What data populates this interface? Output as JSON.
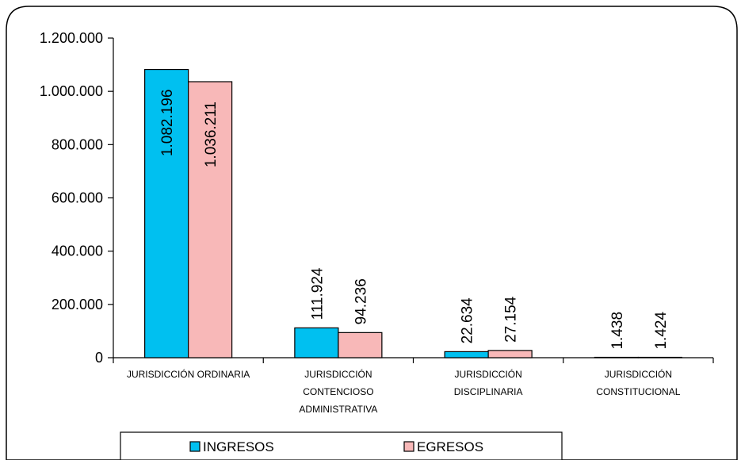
{
  "chart_data": {
    "type": "bar",
    "categories": [
      [
        "JURISDICCIÓN ORDINARIA"
      ],
      [
        "JURISDICCIÓN",
        "CONTENCIOSO",
        "ADMINISTRATIVA"
      ],
      [
        "JURISDICCIÓN",
        "DISCIPLINARIA"
      ],
      [
        "JURISDICCIÓN",
        "CONSTITUCIONAL"
      ]
    ],
    "series": [
      {
        "name": "INGRESOS",
        "color": "#00c0f0",
        "values": [
          1082196,
          111924,
          22634,
          1438
        ],
        "labels": [
          "1.082.196",
          "111.924",
          "22.634",
          "1.438"
        ]
      },
      {
        "name": "EGRESOS",
        "color": "#f8b8b8",
        "values": [
          1036211,
          94236,
          27154,
          1424
        ],
        "labels": [
          "1.036.211",
          "94.236",
          "27.154",
          "1.424"
        ]
      }
    ],
    "yticks": [
      "0",
      "200.000",
      "400.000",
      "600.000",
      "800.000",
      "1.000.000",
      "1.200.000"
    ],
    "ylim": [
      0,
      1200000
    ],
    "grid": false,
    "legend_position": "bottom"
  }
}
